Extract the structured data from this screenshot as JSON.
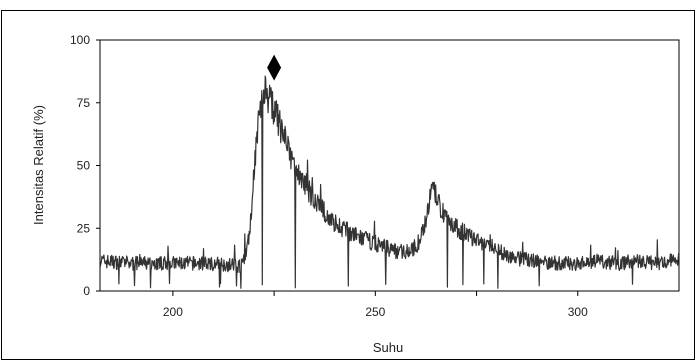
{
  "chart_data": {
    "type": "line",
    "xlabel": "Suhu",
    "ylabel": "Intensitas Relatif (%)",
    "xlim": [
      182,
      325
    ],
    "ylim": [
      0,
      100
    ],
    "x_ticks": [
      200,
      250,
      300
    ],
    "y_ticks": [
      0,
      25,
      50,
      75,
      100
    ],
    "grid": false,
    "line_color": "#333333",
    "marker": {
      "symbol": "diamond",
      "x": 225,
      "y": 89,
      "color": "#000000"
    },
    "series": [
      {
        "x": [
          182,
          190,
          200,
          210,
          217,
          219,
          220,
          221,
          222,
          223,
          224,
          226,
          228,
          230,
          233,
          236,
          240,
          245,
          250,
          255,
          259,
          261,
          263,
          264,
          265,
          266,
          268,
          270,
          275,
          280,
          285,
          290,
          295,
          300,
          305,
          310,
          315,
          320,
          325
        ],
        "y": [
          12,
          11,
          11,
          11,
          10,
          22,
          48,
          66,
          77,
          80,
          76,
          68,
          58,
          50,
          41,
          34,
          27,
          22,
          19,
          16,
          16,
          20,
          32,
          41,
          38,
          33,
          29,
          25,
          20,
          16,
          13,
          12,
          11,
          11,
          12,
          11,
          12,
          11,
          13
        ]
      }
    ]
  }
}
